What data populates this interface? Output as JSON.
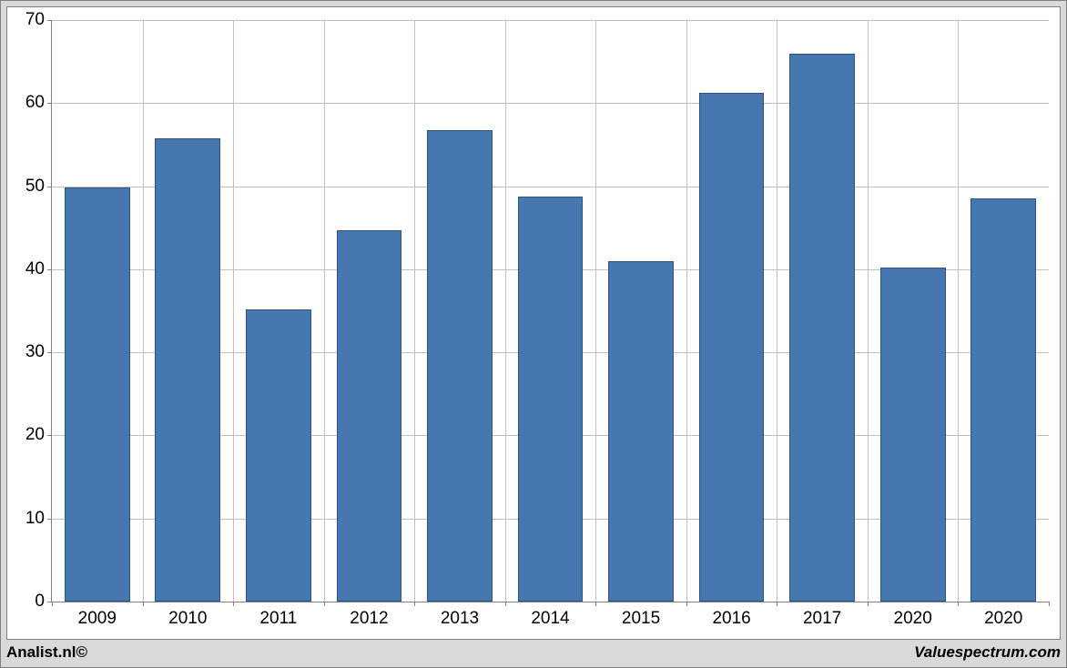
{
  "chart": {
    "type": "bar",
    "categories": [
      "2009",
      "2010",
      "2011",
      "2012",
      "2013",
      "2014",
      "2015",
      "2016",
      "2017",
      "2020",
      "2020"
    ],
    "values": [
      49.8,
      55.8,
      35.2,
      44.7,
      56.8,
      48.8,
      41.0,
      61.2,
      66.0,
      40.2,
      48.5
    ],
    "bar_color": "#4677b0",
    "bar_border_color": "#2f527e",
    "ylim": [
      0,
      70
    ],
    "ytick_step": 10,
    "yticks": [
      0,
      10,
      20,
      30,
      40,
      50,
      60,
      70
    ],
    "background_color": "#ffffff",
    "outer_background": "#d9d9d9",
    "grid_color": "#c0c0c0",
    "axis_color": "#808080",
    "tick_font_size": 19,
    "bar_width_ratio": 0.72
  },
  "footer": {
    "left": "Analist.nl©",
    "right": "Valuespectrum.com"
  }
}
